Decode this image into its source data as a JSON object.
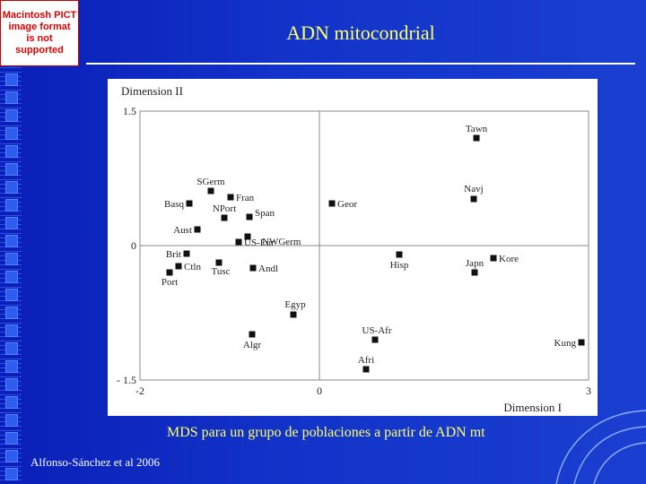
{
  "slide": {
    "title": "ADN mitocondrial",
    "caption": "MDS para un grupo de poblaciones a partir de ADN mt",
    "credit": "Alfonso-Sánchez et al 2006",
    "placeholder_lines": [
      "Macintosh PICT",
      "image format",
      "is not supported"
    ]
  },
  "colors": {
    "background": "#1233c9",
    "title_text": "#ffff66",
    "caption_text": "#ffff66",
    "placeholder_text": "#e00000"
  },
  "chart_data": {
    "type": "scatter",
    "ylabel": "Dimension II",
    "xlabel": "Dimension I",
    "xlim": [
      -2,
      3
    ],
    "ylim": [
      -1.5,
      1.5
    ],
    "y_tick_labels": [
      "1.5",
      "0",
      "- 1.5"
    ],
    "x_tick_labels": [
      "-2",
      "0",
      "3"
    ],
    "reference_lines": {
      "x": 0,
      "y": 0
    },
    "points": [
      {
        "label": "Tawn",
        "x": 1.75,
        "y": 1.2
      },
      {
        "label": "Navj",
        "x": 1.72,
        "y": 0.52
      },
      {
        "label": "SGerm",
        "x": -1.21,
        "y": 0.61
      },
      {
        "label": "Fran",
        "x": -0.99,
        "y": 0.54
      },
      {
        "label": "Basq",
        "x": -1.45,
        "y": 0.47
      },
      {
        "label": "Geor",
        "x": 0.14,
        "y": 0.47
      },
      {
        "label": "NPort",
        "x": -1.06,
        "y": 0.31
      },
      {
        "label": "Span",
        "x": -0.78,
        "y": 0.32
      },
      {
        "label": "Aust",
        "x": -1.36,
        "y": 0.18
      },
      {
        "label": "NWGerm",
        "x": -0.8,
        "y": 0.1
      },
      {
        "label": "Brit",
        "x": -1.48,
        "y": -0.09
      },
      {
        "label": "US-Eur",
        "x": -0.9,
        "y": 0.04
      },
      {
        "label": "Hisp",
        "x": 0.89,
        "y": -0.1
      },
      {
        "label": "Kore",
        "x": 1.94,
        "y": -0.14
      },
      {
        "label": "Ctln",
        "x": -1.57,
        "y": -0.23
      },
      {
        "label": "Tusc",
        "x": -1.12,
        "y": -0.19
      },
      {
        "label": "Andl",
        "x": -0.74,
        "y": -0.25
      },
      {
        "label": "Japn",
        "x": 1.73,
        "y": -0.3
      },
      {
        "label": "Port",
        "x": -1.67,
        "y": -0.3
      },
      {
        "label": "Egyp",
        "x": -0.29,
        "y": -0.77
      },
      {
        "label": "Algr",
        "x": -0.75,
        "y": -0.99
      },
      {
        "label": "US-Afr",
        "x": 0.62,
        "y": -1.05
      },
      {
        "label": "Kung",
        "x": 2.92,
        "y": -1.08
      },
      {
        "label": "Afri",
        "x": 0.52,
        "y": -1.38
      }
    ]
  }
}
